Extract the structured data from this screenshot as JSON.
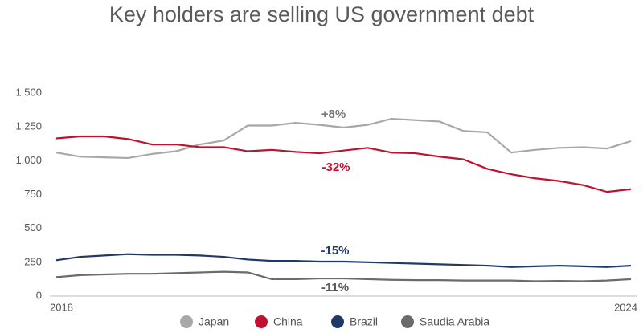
{
  "chart_data": {
    "type": "line",
    "title": "Key holders are selling US government debt",
    "categories": [
      "2018",
      null,
      null,
      null,
      null,
      null,
      null,
      null,
      null,
      null,
      null,
      null,
      null,
      null,
      null,
      null,
      null,
      null,
      null,
      null,
      null,
      null,
      null,
      null,
      "2024"
    ],
    "series": [
      {
        "name": "Japan",
        "color": "#a8a8a8",
        "values": [
          1060,
          1030,
          1025,
          1020,
          1050,
          1070,
          1120,
          1150,
          1260,
          1260,
          1280,
          1265,
          1245,
          1265,
          1310,
          1300,
          1290,
          1220,
          1210,
          1060,
          1080,
          1095,
          1100,
          1090,
          1145
        ]
      },
      {
        "name": "China",
        "color": "#c0112f",
        "values": [
          1165,
          1180,
          1180,
          1160,
          1120,
          1120,
          1100,
          1100,
          1070,
          1080,
          1065,
          1055,
          1075,
          1095,
          1060,
          1055,
          1030,
          1010,
          940,
          900,
          870,
          850,
          820,
          770,
          790
        ]
      },
      {
        "name": "Brazil",
        "color": "#1f3a68",
        "values": [
          265,
          290,
          300,
          310,
          305,
          305,
          300,
          290,
          270,
          260,
          260,
          255,
          255,
          250,
          245,
          240,
          235,
          230,
          225,
          215,
          220,
          225,
          220,
          215,
          225
        ]
      },
      {
        "name": "Saudia Arabia",
        "color": "#6b6b6b",
        "values": [
          140,
          155,
          160,
          165,
          165,
          170,
          175,
          180,
          175,
          125,
          125,
          130,
          130,
          125,
          120,
          118,
          118,
          115,
          115,
          115,
          110,
          112,
          110,
          115,
          125
        ]
      }
    ],
    "annotations": [
      "+8%",
      "-32%",
      "-15%",
      "-11%"
    ],
    "ylim": [
      0,
      1500
    ],
    "yticks": [
      0,
      250,
      500,
      750,
      {
        "value": 1000,
        "label": "1,000"
      },
      {
        "value": 1250,
        "label": "1,250"
      },
      {
        "value": 1500,
        "label": "1,500"
      }
    ],
    "legend": "bottom"
  }
}
